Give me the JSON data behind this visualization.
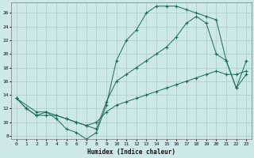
{
  "xlabel": "Humidex (Indice chaleur)",
  "bg_color": "#cce8e8",
  "grid_color": "#aacccc",
  "line_color": "#1a6b5a",
  "xlim": [
    -0.5,
    23.5
  ],
  "ylim": [
    7.5,
    27.5
  ],
  "xticks": [
    0,
    1,
    2,
    3,
    4,
    5,
    6,
    7,
    8,
    9,
    10,
    11,
    12,
    13,
    14,
    15,
    16,
    17,
    18,
    19,
    20,
    21,
    22,
    23
  ],
  "yticks": [
    8,
    10,
    12,
    14,
    16,
    18,
    20,
    22,
    24,
    26
  ],
  "line1_x": [
    0,
    1,
    2,
    3,
    4,
    5,
    6,
    7,
    8,
    9,
    10,
    11,
    12,
    13,
    14,
    15,
    16,
    17,
    18,
    19,
    20,
    21,
    22,
    23
  ],
  "line1_y": [
    13.5,
    12.0,
    11.0,
    11.5,
    10.5,
    9.0,
    8.5,
    7.5,
    8.5,
    12.5,
    19.0,
    22.0,
    23.5,
    26.0,
    27.0,
    27.0,
    27.0,
    26.5,
    26.0,
    25.5,
    25.0,
    19.0,
    15.0,
    17.0
  ],
  "line2_x": [
    0,
    1,
    2,
    3,
    4,
    5,
    6,
    7,
    8,
    9,
    10,
    11,
    12,
    13,
    14,
    15,
    16,
    17,
    18,
    19,
    20,
    21,
    22,
    23
  ],
  "line2_y": [
    13.5,
    12.0,
    11.0,
    11.0,
    11.0,
    10.5,
    10.0,
    9.5,
    10.0,
    11.5,
    12.5,
    13.0,
    13.5,
    14.0,
    14.5,
    15.0,
    15.5,
    16.0,
    16.5,
    17.0,
    17.5,
    17.0,
    17.0,
    17.5
  ],
  "line3_x": [
    0,
    2,
    3,
    4,
    5,
    6,
    7,
    8,
    9,
    10,
    11,
    12,
    13,
    14,
    15,
    16,
    17,
    18,
    19,
    20,
    21,
    22,
    23
  ],
  "line3_y": [
    13.5,
    11.5,
    11.5,
    11.0,
    10.5,
    10.0,
    9.5,
    9.0,
    13.0,
    16.0,
    17.0,
    18.0,
    19.0,
    20.0,
    21.0,
    22.5,
    24.5,
    25.5,
    24.5,
    20.0,
    19.0,
    15.0,
    19.0
  ]
}
